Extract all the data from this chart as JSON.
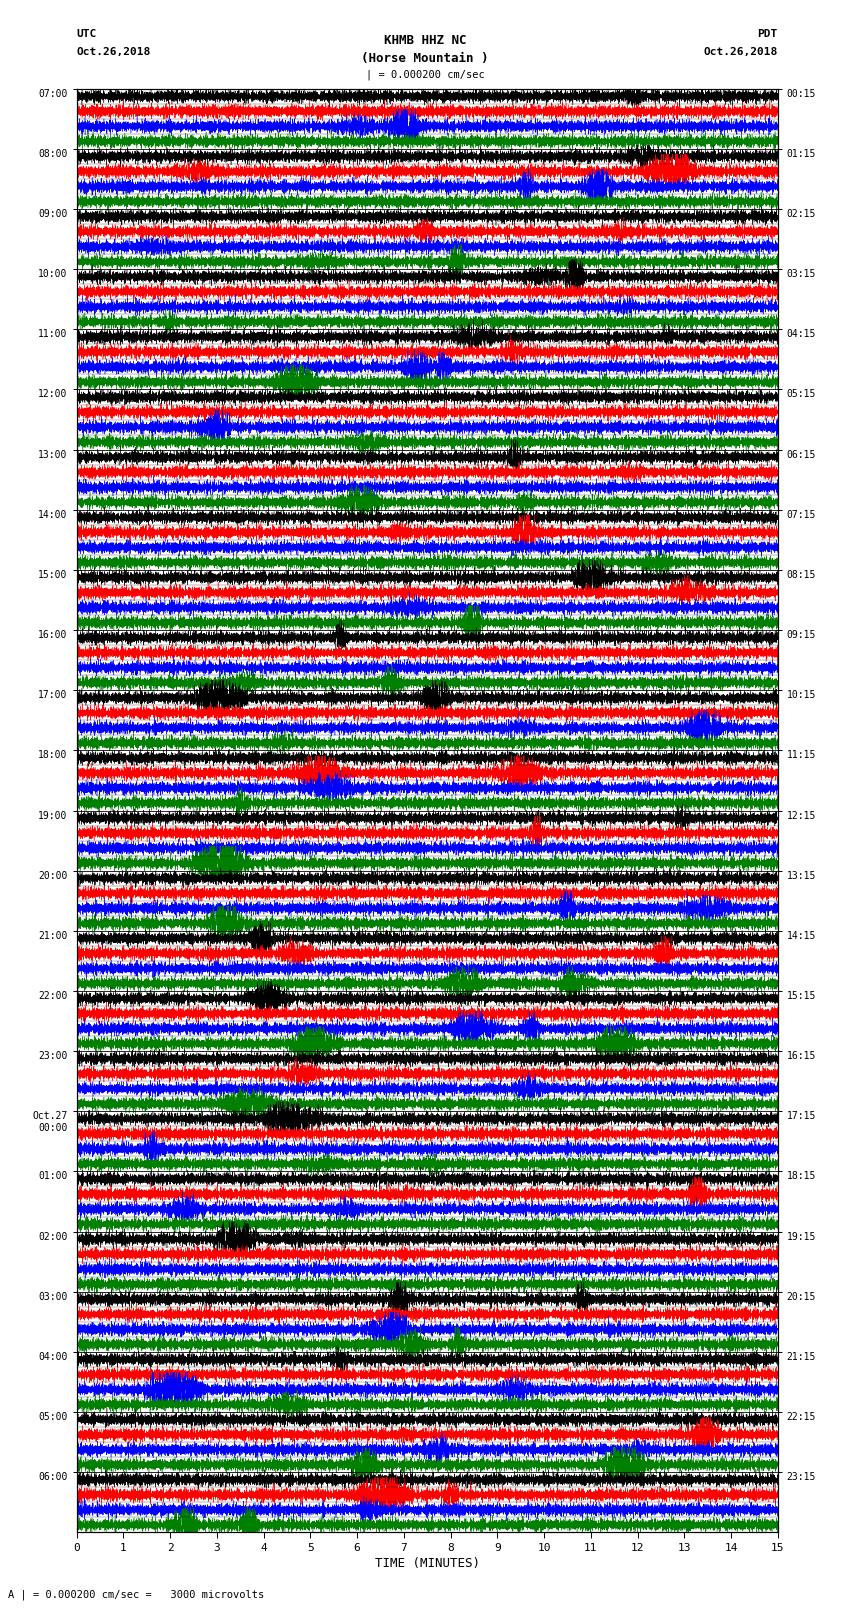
{
  "title_line1": "KHMB HHZ NC",
  "title_line2": "(Horse Mountain )",
  "title_line3": "| = 0.000200 cm/sec",
  "left_header_line1": "UTC",
  "left_header_line2": "Oct.26,2018",
  "right_header_line1": "PDT",
  "right_header_line2": "Oct.26,2018",
  "xlabel": "TIME (MINUTES)",
  "bottom_note": "A | = 0.000200 cm/sec =   3000 microvolts",
  "utc_times": [
    "07:00",
    "08:00",
    "09:00",
    "10:00",
    "11:00",
    "12:00",
    "13:00",
    "14:00",
    "15:00",
    "16:00",
    "17:00",
    "18:00",
    "19:00",
    "20:00",
    "21:00",
    "22:00",
    "23:00",
    "Oct.27\n00:00",
    "01:00",
    "02:00",
    "03:00",
    "04:00",
    "05:00",
    "06:00"
  ],
  "pdt_times": [
    "00:15",
    "01:15",
    "02:15",
    "03:15",
    "04:15",
    "05:15",
    "06:15",
    "07:15",
    "08:15",
    "09:15",
    "10:15",
    "11:15",
    "12:15",
    "13:15",
    "14:15",
    "15:15",
    "16:15",
    "17:15",
    "18:15",
    "19:15",
    "20:15",
    "21:15",
    "22:15",
    "23:15"
  ],
  "n_rows": 24,
  "n_traces_per_row": 4,
  "colors": [
    "black",
    "red",
    "blue",
    "green"
  ],
  "x_min": 0,
  "x_max": 15,
  "x_ticks": [
    0,
    1,
    2,
    3,
    4,
    5,
    6,
    7,
    8,
    9,
    10,
    11,
    12,
    13,
    14,
    15
  ],
  "bg_color": "white",
  "fig_width": 8.5,
  "fig_height": 16.13,
  "seed": 42,
  "n_points": 8000,
  "trace_amplitude": 0.115,
  "trace_linewidth": 0.3,
  "separator_linewidth": 0.5,
  "separator_color": "black",
  "high_freq": 80,
  "low_freq": 15
}
